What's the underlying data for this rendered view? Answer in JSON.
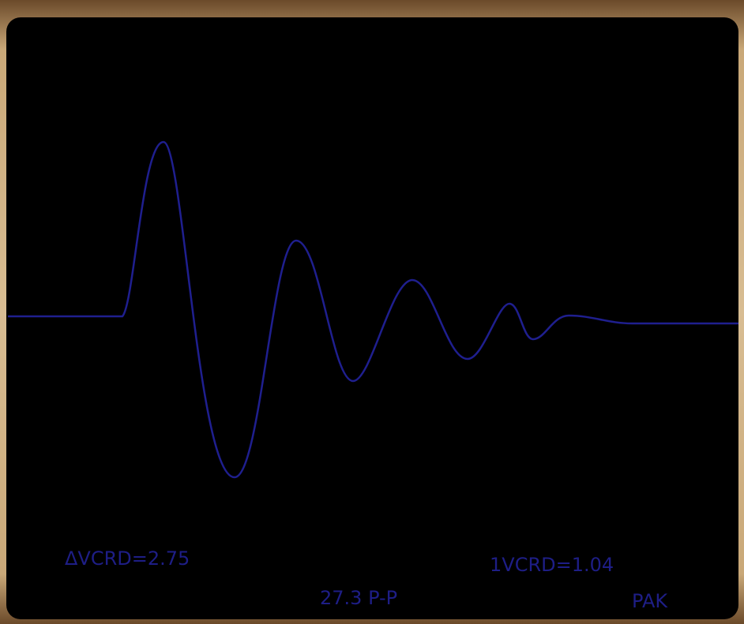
{
  "readouts": {
    "delta_v": "ΔVCRD=2.75",
    "v_cursor": "1VCRD=1.04",
    "peak_to_peak": "27.3 P-P",
    "mode": "PAK"
  }
}
